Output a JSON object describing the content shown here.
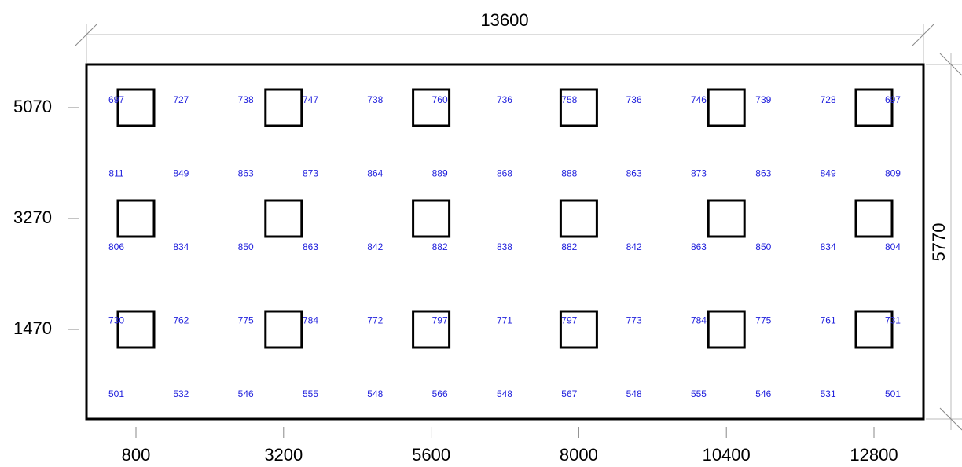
{
  "width_label": "13600",
  "height_label": "5770",
  "x_labels": [
    "800",
    "3200",
    "5600",
    "8000",
    "10400",
    "12800"
  ],
  "y_labels": [
    "5070",
    "3270",
    "1470"
  ],
  "grid": [
    [
      "697",
      "727",
      "738",
      "747",
      "738",
      "760",
      "736",
      "758",
      "736",
      "746",
      "739",
      "728",
      "697"
    ],
    [
      "811",
      "849",
      "863",
      "873",
      "864",
      "889",
      "868",
      "888",
      "863",
      "873",
      "863",
      "849",
      "809"
    ],
    [
      "806",
      "834",
      "850",
      "863",
      "842",
      "882",
      "838",
      "882",
      "842",
      "863",
      "850",
      "834",
      "804"
    ],
    [
      "730",
      "762",
      "775",
      "784",
      "772",
      "797",
      "771",
      "797",
      "773",
      "784",
      "775",
      "761",
      "731"
    ],
    [
      "501",
      "532",
      "546",
      "555",
      "548",
      "566",
      "548",
      "567",
      "548",
      "555",
      "546",
      "531",
      "501"
    ]
  ]
}
